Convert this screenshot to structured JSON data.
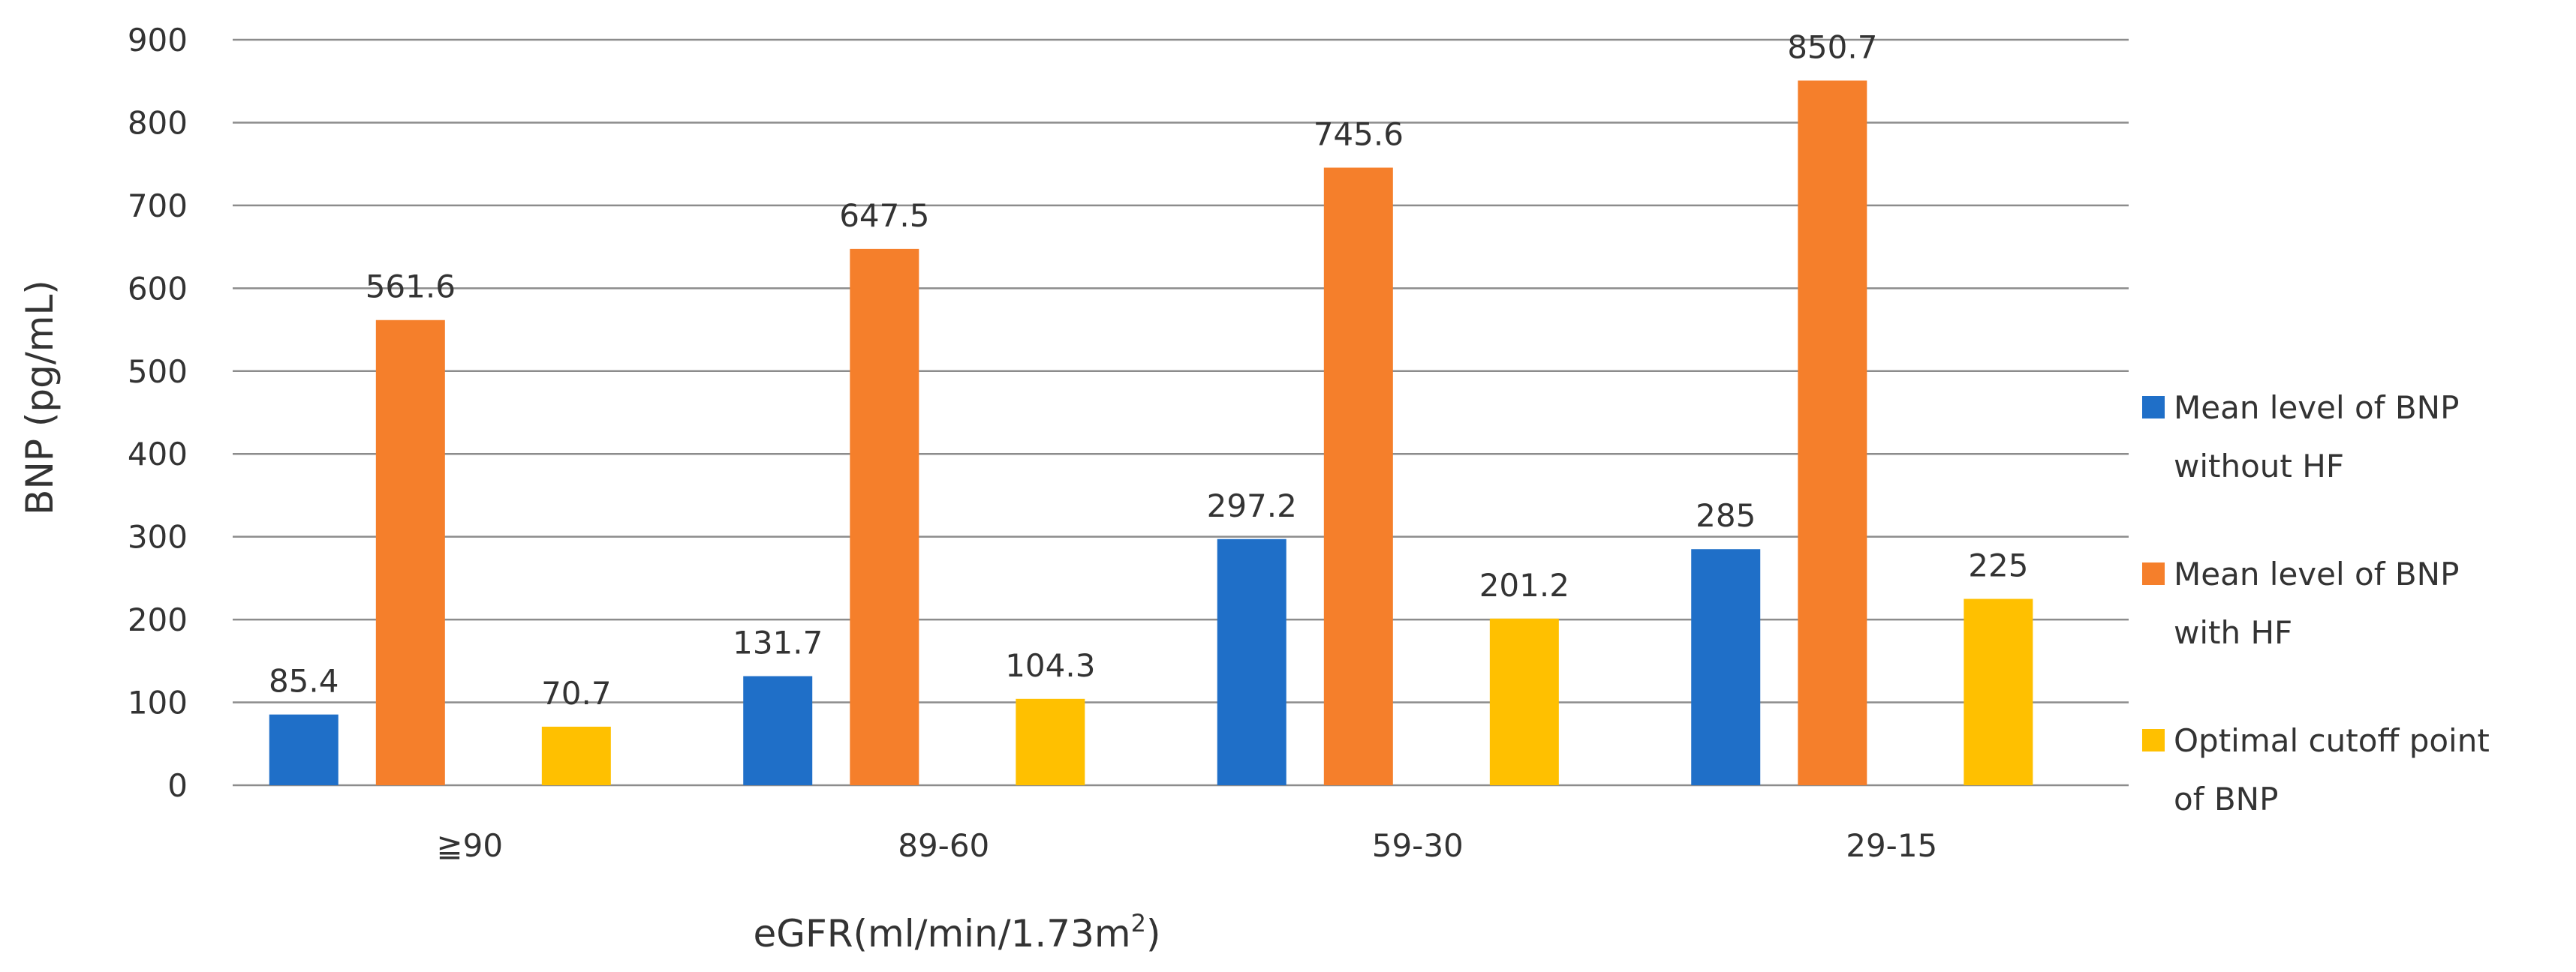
{
  "chart_data": {
    "type": "bar",
    "categories": [
      "≧90",
      "89-60",
      "59-30",
      "29-15"
    ],
    "series": [
      {
        "name": "Mean level of BNP without HF",
        "legend_lines": [
          "Mean level of BNP",
          "without HF"
        ],
        "color": "#1f6fc8",
        "values": [
          85.4,
          131.7,
          297.2,
          285
        ],
        "labels": [
          "85.4",
          "131.7",
          "297.2",
          "285"
        ]
      },
      {
        "name": "Mean level of BNP with HF",
        "legend_lines": [
          "Mean level of BNP",
          "with HF"
        ],
        "color": "#f57f2b",
        "values": [
          561.6,
          647.5,
          745.6,
          850.7
        ],
        "labels": [
          "561.6",
          "647.5",
          "745.6",
          "850.7"
        ]
      },
      {
        "name": "Optimal cutoff point of BNP",
        "legend_lines": [
          "Optimal cutoff point",
          "of BNP"
        ],
        "color": "#ffc000",
        "values": [
          70.7,
          104.3,
          201.2,
          225
        ],
        "labels": [
          "70.7",
          "104.3",
          "201.2",
          "225"
        ]
      }
    ],
    "xlabel": "eGFR(ml/min/1.73m",
    "xlabel_sup": "2",
    "xlabel_suffix": ")",
    "ylabel": "BNP  (pg/mL)",
    "ylim": [
      0,
      900
    ],
    "yticks": [
      0,
      100,
      200,
      300,
      400,
      500,
      600,
      700,
      800,
      900
    ],
    "grid": true,
    "legend_position": "right"
  }
}
